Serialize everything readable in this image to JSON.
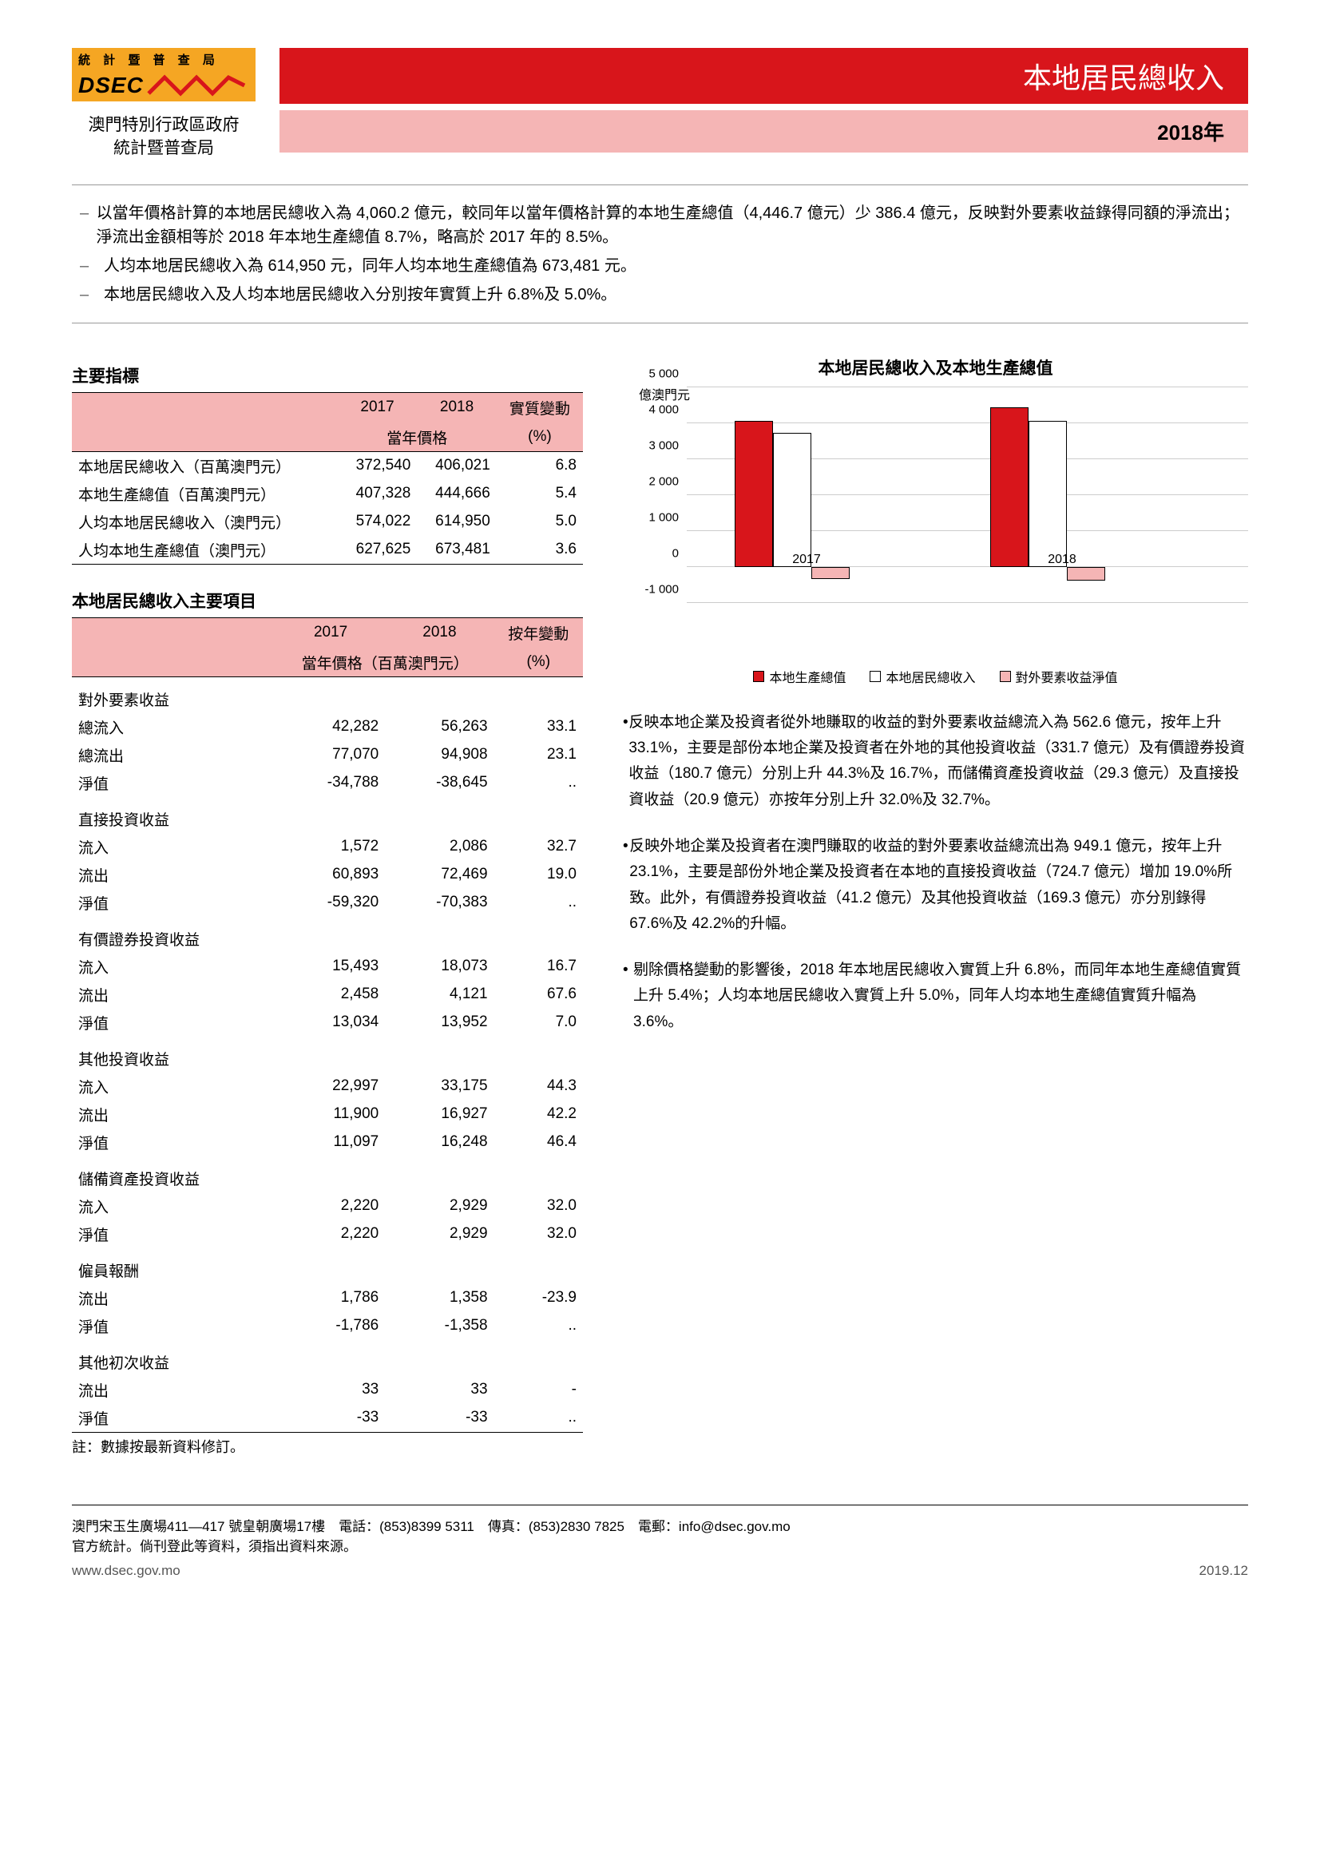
{
  "header": {
    "logo_top": "統 計 暨 普 查 局",
    "logo_mid": "DSEC",
    "org_line1": "澳門特別行政區政府",
    "org_line2": "統計暨普查局",
    "title": "本地居民總收入",
    "year": "2018年"
  },
  "bullets": [
    "以當年價格計算的本地居民總收入為 4,060.2 億元，較同年以當年價格計算的本地生產總值（4,446.7 億元）少 386.4 億元，反映對外要素收益錄得同額的淨流出；淨流出金額相等於 2018 年本地生產總值 8.7%，略高於 2017 年的 8.5%。",
    "人均本地居民總收入為 614,950 元，同年人均本地生產總值為 673,481 元。",
    "本地居民總收入及人均本地居民總收入分別按年實質上升 6.8%及 5.0%。"
  ],
  "table1": {
    "title": "主要指標",
    "col_2017": "2017",
    "col_2018": "2018",
    "col_change": "實質變動",
    "sub_price": "當年價格",
    "sub_pct": "(%)",
    "rows": [
      {
        "label": "本地居民總收入（百萬澳門元）",
        "v2017": "372,540",
        "v2018": "406,021",
        "chg": "6.8"
      },
      {
        "label": "本地生產總值（百萬澳門元）",
        "v2017": "407,328",
        "v2018": "444,666",
        "chg": "5.4"
      },
      {
        "label": "人均本地居民總收入（澳門元）",
        "v2017": "574,022",
        "v2018": "614,950",
        "chg": "5.0"
      },
      {
        "label": "人均本地生產總值（澳門元）",
        "v2017": "627,625",
        "v2018": "673,481",
        "chg": "3.6"
      }
    ]
  },
  "table2": {
    "title": "本地居民總收入主要項目",
    "col_2017": "2017",
    "col_2018": "2018",
    "col_change": "按年變動",
    "sub_price": "當年價格（百萬澳門元）",
    "sub_pct": "(%)",
    "sections": [
      {
        "label": "對外要素收益",
        "rows": [
          {
            "label": "總流入",
            "v2017": "42,282",
            "v2018": "56,263",
            "chg": "33.1"
          },
          {
            "label": "總流出",
            "v2017": "77,070",
            "v2018": "94,908",
            "chg": "23.1"
          },
          {
            "label": "淨值",
            "v2017": "-34,788",
            "v2018": "-38,645",
            "chg": ".."
          }
        ]
      },
      {
        "label": "直接投資收益",
        "rows": [
          {
            "label": "流入",
            "v2017": "1,572",
            "v2018": "2,086",
            "chg": "32.7"
          },
          {
            "label": "流出",
            "v2017": "60,893",
            "v2018": "72,469",
            "chg": "19.0"
          },
          {
            "label": "淨值",
            "v2017": "-59,320",
            "v2018": "-70,383",
            "chg": ".."
          }
        ]
      },
      {
        "label": "有價證券投資收益",
        "rows": [
          {
            "label": "流入",
            "v2017": "15,493",
            "v2018": "18,073",
            "chg": "16.7"
          },
          {
            "label": "流出",
            "v2017": "2,458",
            "v2018": "4,121",
            "chg": "67.6"
          },
          {
            "label": "淨值",
            "v2017": "13,034",
            "v2018": "13,952",
            "chg": "7.0"
          }
        ]
      },
      {
        "label": "其他投資收益",
        "rows": [
          {
            "label": "流入",
            "v2017": "22,997",
            "v2018": "33,175",
            "chg": "44.3"
          },
          {
            "label": "流出",
            "v2017": "11,900",
            "v2018": "16,927",
            "chg": "42.2"
          },
          {
            "label": "淨值",
            "v2017": "11,097",
            "v2018": "16,248",
            "chg": "46.4"
          }
        ]
      },
      {
        "label": "儲備資產投資收益",
        "rows": [
          {
            "label": "流入",
            "v2017": "2,220",
            "v2018": "2,929",
            "chg": "32.0"
          },
          {
            "label": "淨值",
            "v2017": "2,220",
            "v2018": "2,929",
            "chg": "32.0"
          }
        ]
      },
      {
        "label": "僱員報酬",
        "rows": [
          {
            "label": "流出",
            "v2017": "1,786",
            "v2018": "1,358",
            "chg": "-23.9"
          },
          {
            "label": "淨值",
            "v2017": "-1,786",
            "v2018": "-1,358",
            "chg": ".."
          }
        ]
      },
      {
        "label": "其他初次收益",
        "rows": [
          {
            "label": "流出",
            "v2017": "33",
            "v2018": "33",
            "chg": "-"
          },
          {
            "label": "淨值",
            "v2017": "-33",
            "v2018": "-33",
            "chg": ".."
          }
        ]
      }
    ],
    "footnote": "註：數據按最新資料修訂。"
  },
  "chart": {
    "title": "本地居民總收入及本地生產總值",
    "ylabel": "億澳門元",
    "ylim": [
      -1000,
      5000
    ],
    "ytick_step": 1000,
    "yticks": [
      "-1 000",
      "0",
      "1 000",
      "2 000",
      "3 000",
      "4 000",
      "5 000"
    ],
    "categories": [
      "2017",
      "2018"
    ],
    "series": [
      {
        "name": "本地生產總值",
        "color": "#d8151b",
        "values": [
          4073,
          4447
        ]
      },
      {
        "name": "本地居民總收入",
        "color": "#ffffff",
        "values": [
          3725,
          4060
        ]
      },
      {
        "name": "對外要素收益淨值",
        "color": "#f5b5b5",
        "values": [
          -348,
          -386
        ]
      }
    ],
    "legend": [
      "本地生產總值",
      "本地居民總收入",
      "對外要素收益淨值"
    ]
  },
  "paras": [
    "反映本地企業及投資者從外地賺取的收益的對外要素收益總流入為 562.6 億元，按年上升 33.1%，主要是部份本地企業及投資者在外地的其他投資收益（331.7 億元）及有價證券投資收益（180.7 億元）分別上升 44.3%及 16.7%，而儲備資產投資收益（29.3 億元）及直接投資收益（20.9 億元）亦按年分別上升 32.0%及 32.7%。",
    "反映外地企業及投資者在澳門賺取的收益的對外要素收益總流出為 949.1 億元，按年上升 23.1%，主要是部份外地企業及投資者在本地的直接投資收益（724.7 億元）增加 19.0%所致。此外，有價證券投資收益（41.2 億元）及其他投資收益（169.3 億元）亦分別錄得 67.6%及 42.2%的升幅。",
    "剔除價格變動的影響後，2018 年本地居民總收入實質上升 6.8%，而同年本地生產總值實質上升 5.4%；人均本地居民總收入實質上升 5.0%，同年人均本地生產總值實質升幅為 3.6%。"
  ],
  "footer": {
    "line1": "澳門宋玉生廣場411—417 號皇朝廣場17樓　電話：(853)8399 5311　傳真：(853)2830 7825　電郵：info@dsec.gov.mo",
    "line2": "官方統計。倘刊登此等資料，須指出資料來源。",
    "url": "www.dsec.gov.mo",
    "date": "2019.12"
  }
}
